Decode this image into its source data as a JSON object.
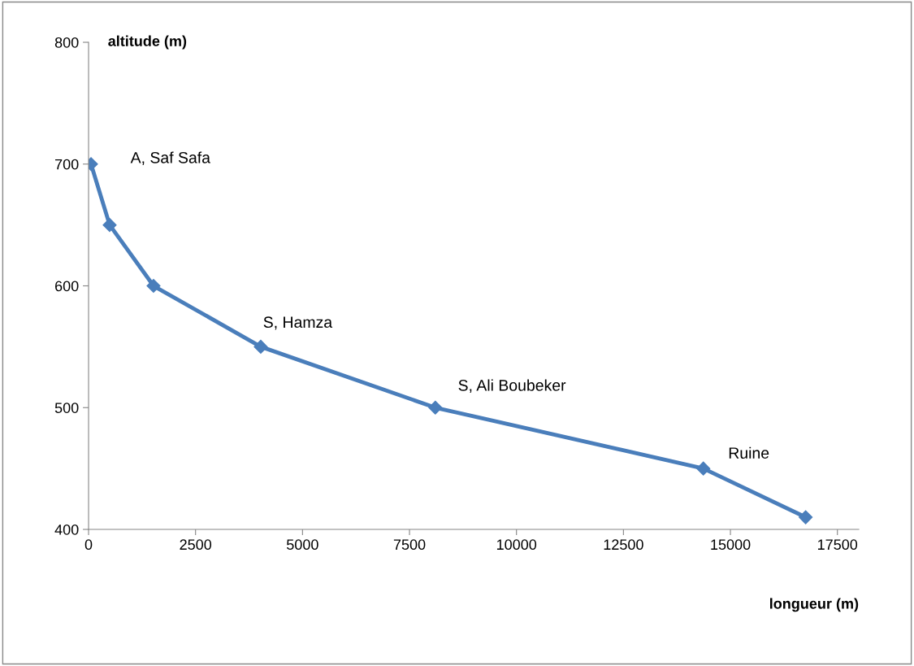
{
  "chart_data": {
    "type": "line",
    "xlabel": "longueur (m)",
    "ylabel": "altitude (m)",
    "x": [
      57,
      493,
      1518,
      4024,
      8104,
      14367,
      16758
    ],
    "series": [
      {
        "color": "#4a7ebb",
        "values": [
          700,
          650,
          600,
          550,
          500,
          450,
          410
        ]
      }
    ],
    "xlim": [
      0,
      18000
    ],
    "xticks": [
      0,
      2500,
      5000,
      7500,
      10000,
      12500,
      15000,
      17500
    ],
    "ylim": [
      400,
      800
    ],
    "yticks": [
      400,
      500,
      600,
      700,
      800
    ],
    "marker": "diamond",
    "line_style": "solid",
    "grid": false,
    "legend": false,
    "annotations": [
      {
        "text": "A, Saf Safa",
        "x": 57,
        "y": 700
      },
      {
        "text": "S, Hamza",
        "x": 4024,
        "y": 550
      },
      {
        "text": "S, Ali Boubeker",
        "x": 8104,
        "y": 500
      },
      {
        "text": "Ruine",
        "x": 14367,
        "y": 450
      }
    ]
  }
}
